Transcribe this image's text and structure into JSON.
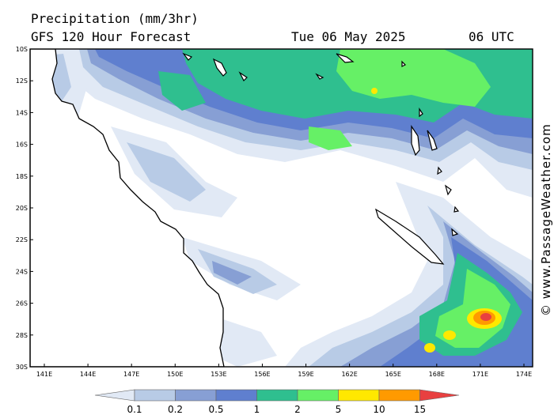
{
  "header": {
    "title": "Precipitation (mm/3hr)",
    "model": "GFS 120 Hour Forecast",
    "date": "Tue 06 May 2025",
    "time": "06 UTC"
  },
  "copyright": "© www.PassageWeather.com",
  "map": {
    "lat_labels": [
      "10S",
      "12S",
      "14S",
      "16S",
      "18S",
      "20S",
      "22S",
      "24S",
      "26S",
      "28S",
      "30S"
    ],
    "lon_labels": [
      "141E",
      "144E",
      "147E",
      "150E",
      "153E",
      "156E",
      "159E",
      "162E",
      "165E",
      "168E",
      "171E",
      "174E"
    ],
    "lat_range": [
      -30,
      -10
    ],
    "lon_range": [
      140,
      175
    ]
  },
  "legend": {
    "labels": [
      "0.1",
      "0.2",
      "0.5",
      "1",
      "2",
      "5",
      "10",
      "15"
    ],
    "colors": [
      "#e1e9f5",
      "#b8cbe6",
      "#879fd4",
      "#5f7fcf",
      "#2fbf8f",
      "#66f066",
      "#ffe800",
      "#ff9a00",
      "#e84040"
    ]
  },
  "features": {
    "land_color": "#ffffff",
    "coast_color": "#000000"
  }
}
